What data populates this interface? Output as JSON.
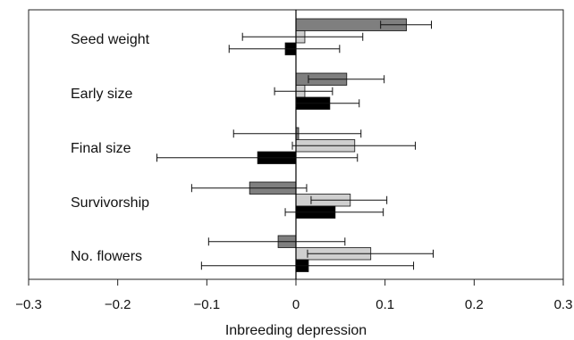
{
  "chart_data": {
    "type": "bar",
    "orientation": "horizontal",
    "title": "",
    "xlabel": "Inbreeding depression",
    "ylabel": "",
    "xlim": [
      -0.3,
      0.3
    ],
    "xticks": [
      -0.3,
      -0.2,
      -0.1,
      0,
      0.1,
      0.2,
      0.3
    ],
    "xtick_labels": [
      "−0.3",
      "−0.2",
      "−0.1",
      "0",
      "0.1",
      "0.2",
      "0.3"
    ],
    "grid": false,
    "legend": "none",
    "categories": [
      "Seed weight",
      "Early size",
      "Final size",
      "Survivorship",
      "No. flowers"
    ],
    "series": [
      {
        "color": "#7f7f7f",
        "values": [
          0.124,
          0.057,
          0.003,
          -0.052,
          -0.02
        ],
        "error_low": [
          0.095,
          0.014,
          -0.07,
          -0.117,
          -0.098
        ],
        "error_high": [
          0.152,
          0.099,
          0.073,
          0.012,
          0.055
        ]
      },
      {
        "color": "#cfcfcf",
        "values": [
          0.01,
          0.01,
          0.066,
          0.061,
          0.084
        ],
        "error_low": [
          -0.06,
          -0.024,
          -0.004,
          0.017,
          0.013
        ],
        "error_high": [
          0.075,
          0.041,
          0.134,
          0.102,
          0.154
        ]
      },
      {
        "color": "#000000",
        "values": [
          -0.012,
          0.038,
          -0.043,
          0.044,
          0.014
        ],
        "error_low": [
          -0.075,
          0.0,
          -0.156,
          -0.012,
          -0.106
        ],
        "error_high": [
          0.049,
          0.071,
          0.069,
          0.098,
          0.132
        ]
      }
    ]
  }
}
